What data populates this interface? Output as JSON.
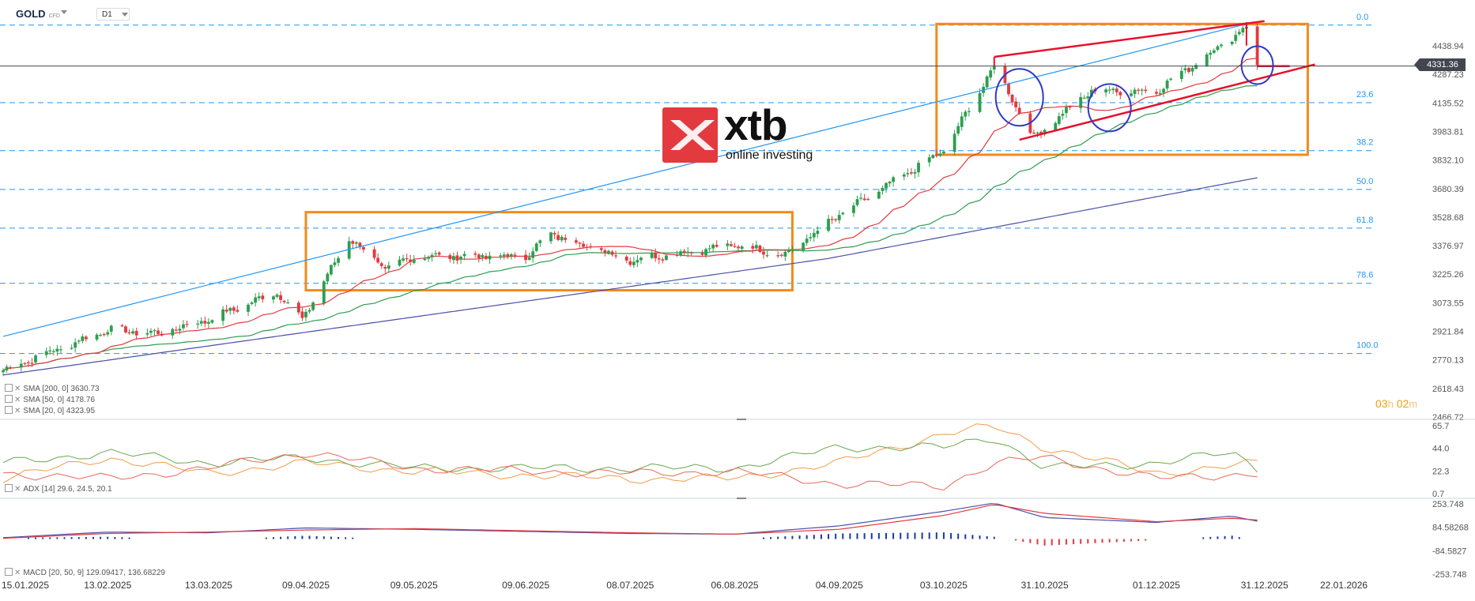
{
  "header": {
    "symbol": "GOLD",
    "symbol_tag": "CFD",
    "timeframe": "D1"
  },
  "logo": {
    "brand": "xtb",
    "tagline": "online investing"
  },
  "countdown": {
    "hours": "03",
    "h": "h",
    "minutes": "02",
    "m": "m"
  },
  "current_price": "4331.36",
  "legend": {
    "sma200": "SMA [200, 0] 3630.73",
    "sma50": "SMA [50, 0] 4178.76",
    "sma20": "SMA [20, 0] 4323.95",
    "adx": "ADX [14] 29.6, 24.5, 20.1",
    "macd": "MACD [20, 50, 9] 129.09417, 136.68229"
  },
  "colors": {
    "up": "#2e9e4f",
    "down": "#e23a3e",
    "sma20": "#e23a3e",
    "sma50": "#2e9e4f",
    "sma200": "#4b4fa8",
    "fib": "#2196f3",
    "channel": "#2196f3",
    "box": "#f38a1c",
    "wedge": "#e8102a",
    "circle": "#3039c9"
  },
  "chart_data": [
    {
      "type": "candlestick",
      "title": "GOLD D1",
      "x_ticks": [
        "15.01.2025",
        "13.02.2025",
        "13.03.2025",
        "09.04.2025",
        "09.05.2025",
        "09.06.2025",
        "08.07.2025",
        "06.08.2025",
        "04.09.2025",
        "03.10.2025",
        "31.10.2025",
        "01.12.2025",
        "31.12.2025",
        "22.01.2026"
      ],
      "y_ticks": [
        4438.94,
        4287.23,
        4135.52,
        3983.81,
        3832.1,
        3680.39,
        3528.68,
        3376.97,
        3225.26,
        3073.55,
        2921.84,
        2770.13,
        2618.43,
        2466.72
      ],
      "ylim": [
        2466.72,
        4550
      ],
      "fib_levels": [
        {
          "label": "0.0",
          "price": 4549
        },
        {
          "label": "23.6",
          "price": 4137
        },
        {
          "label": "38.2",
          "price": 3882
        },
        {
          "label": "50.0",
          "price": 3676
        },
        {
          "label": "61.8",
          "price": 3470
        },
        {
          "label": "78.6",
          "price": 3177
        },
        {
          "label": "100.0",
          "price": 2804
        }
      ],
      "close_anchors": [
        [
          "15.01.2025",
          2715
        ],
        [
          "13.02.2025",
          2930
        ],
        [
          "27.02.2025",
          2910
        ],
        [
          "13.03.2025",
          2985
        ],
        [
          "01.04.2025",
          3130
        ],
        [
          "08.04.2025",
          2985
        ],
        [
          "21.04.2025",
          3420
        ],
        [
          "01.05.2025",
          3250
        ],
        [
          "09.05.2025",
          3320
        ],
        [
          "09.06.2025",
          3320
        ],
        [
          "16.06.2025",
          3440
        ],
        [
          "08.07.2025",
          3300
        ],
        [
          "06.08.2025",
          3380
        ],
        [
          "20.08.2025",
          3330
        ],
        [
          "04.09.2025",
          3540
        ],
        [
          "03.10.2025",
          3880
        ],
        [
          "17.10.2025",
          4330
        ],
        [
          "28.10.2025",
          3950
        ],
        [
          "31.10.2025",
          4005
        ],
        [
          "13.11.2025",
          4200
        ],
        [
          "01.12.2025",
          4200
        ],
        [
          "26.12.2025",
          4540
        ],
        [
          "29.12.2025",
          4331
        ]
      ],
      "series": [
        {
          "name": "SMA 20",
          "last": 4323.95
        },
        {
          "name": "SMA 50",
          "last": 4178.76
        },
        {
          "name": "SMA 200",
          "last": 3630.73
        }
      ],
      "annotations": {
        "consolidation_box": [
          "09.04.2025",
          "22.08.2025",
          3140,
          3555
        ],
        "ranging_box": [
          "01.10.2025",
          "12.01.2026",
          3860,
          4555
        ],
        "trend_line": [
          [
            "15.01.2025",
            2895
          ],
          [
            "26.12.2025",
            4555
          ]
        ]
      }
    },
    {
      "type": "line",
      "title": "ADX [14]",
      "y_ticks": [
        65.7,
        44.0,
        22.3,
        0.7
      ],
      "ylim": [
        0.7,
        65.7
      ],
      "series": [
        {
          "name": "ADX",
          "last": 29.6,
          "anchors": [
            [
              "15.01.2025",
              15
            ],
            [
              "13.02.2025",
              35
            ],
            [
              "13.03.2025",
              20
            ],
            [
              "09.04.2025",
              30
            ],
            [
              "09.05.2025",
              22
            ],
            [
              "08.07.2025",
              15
            ],
            [
              "06.08.2025",
              15
            ],
            [
              "04.09.2025",
              30
            ],
            [
              "03.10.2025",
              58
            ],
            [
              "17.10.2025",
              65
            ],
            [
              "31.10.2025",
              45
            ],
            [
              "01.12.2025",
              20
            ],
            [
              "29.12.2025",
              29.6
            ]
          ]
        },
        {
          "name": "+DI",
          "last": 24.5,
          "anchors": [
            [
              "15.01.2025",
              30
            ],
            [
              "13.02.2025",
              40
            ],
            [
              "13.03.2025",
              30
            ],
            [
              "09.04.2025",
              35
            ],
            [
              "09.05.2025",
              25
            ],
            [
              "08.07.2025",
              25
            ],
            [
              "06.08.2025",
              25
            ],
            [
              "04.09.2025",
              45
            ],
            [
              "03.10.2025",
              45
            ],
            [
              "17.10.2025",
              55
            ],
            [
              "31.10.2025",
              25
            ],
            [
              "01.12.2025",
              30
            ],
            [
              "22.12.2025",
              40
            ],
            [
              "29.12.2025",
              24.5
            ]
          ]
        },
        {
          "name": "-DI",
          "last": 20.1,
          "anchors": [
            [
              "15.01.2025",
              20
            ],
            [
              "13.02.2025",
              15
            ],
            [
              "13.03.2025",
              25
            ],
            [
              "09.04.2025",
              40
            ],
            [
              "09.05.2025",
              25
            ],
            [
              "08.07.2025",
              20
            ],
            [
              "06.08.2025",
              22
            ],
            [
              "04.09.2025",
              10
            ],
            [
              "03.10.2025",
              8
            ],
            [
              "17.10.2025",
              30
            ],
            [
              "31.10.2025",
              35
            ],
            [
              "01.12.2025",
              15
            ],
            [
              "29.12.2025",
              20.1
            ]
          ]
        }
      ]
    },
    {
      "type": "macd",
      "title": "MACD [20, 50, 9]",
      "y_ticks": [
        253.748,
        84.58268,
        -84.5827,
        -253.748
      ],
      "ylim": [
        -253.748,
        253.748
      ],
      "series": [
        {
          "name": "MACD",
          "last": 129.09417,
          "anchors": [
            [
              "15.01.2025",
              10
            ],
            [
              "13.02.2025",
              50
            ],
            [
              "13.03.2025",
              45
            ],
            [
              "09.04.2025",
              80
            ],
            [
              "09.05.2025",
              70
            ],
            [
              "08.07.2025",
              40
            ],
            [
              "06.08.2025",
              35
            ],
            [
              "04.09.2025",
              95
            ],
            [
              "03.10.2025",
              200
            ],
            [
              "17.10.2025",
              260
            ],
            [
              "31.10.2025",
              155
            ],
            [
              "01.12.2025",
              120
            ],
            [
              "22.12.2025",
              165
            ],
            [
              "29.12.2025",
              129.09
            ]
          ]
        },
        {
          "name": "Signal",
          "last": 136.68229,
          "anchors": [
            [
              "15.01.2025",
              5
            ],
            [
              "13.02.2025",
              40
            ],
            [
              "13.03.2025",
              50
            ],
            [
              "09.04.2025",
              65
            ],
            [
              "09.05.2025",
              75
            ],
            [
              "08.07.2025",
              45
            ],
            [
              "06.08.2025",
              35
            ],
            [
              "04.09.2025",
              70
            ],
            [
              "03.10.2025",
              170
            ],
            [
              "17.10.2025",
              250
            ],
            [
              "31.10.2025",
              185
            ],
            [
              "01.12.2025",
              125
            ],
            [
              "22.12.2025",
              150
            ],
            [
              "29.12.2025",
              136.68
            ]
          ]
        }
      ]
    }
  ]
}
